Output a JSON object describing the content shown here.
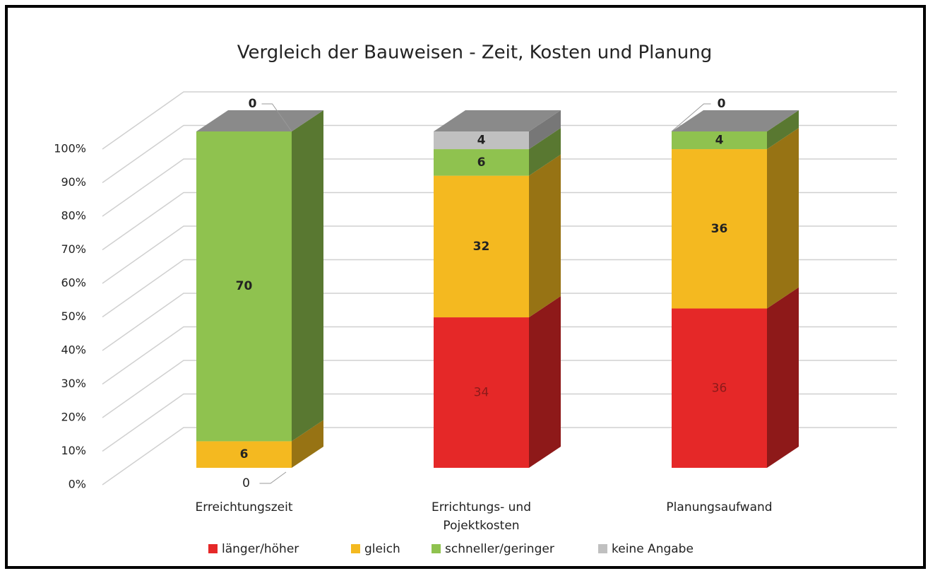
{
  "chart_data": {
    "type": "bar3d",
    "stacking": "percent",
    "title": "Vergleich der Bauweisen - Zeit, Kosten und Planung",
    "categories": [
      "Erreichtungszeit",
      "Errichtungs- und Pojektkosten",
      "Planungsaufwand"
    ],
    "series": [
      {
        "name": "länger/höher",
        "color": "#e52828",
        "values": [
          0,
          34,
          36
        ]
      },
      {
        "name": "gleich",
        "color": "#f4b920",
        "values": [
          6,
          32,
          36
        ]
      },
      {
        "name": "schneller/geringer",
        "color": "#8fc24f",
        "values": [
          70,
          6,
          4
        ]
      },
      {
        "name": "keine Angabe",
        "color": "#c0c0c0",
        "values": [
          0,
          4,
          0
        ]
      }
    ],
    "ylim": [
      0,
      100
    ],
    "yticks": [
      {
        "value": 0,
        "label": "0%"
      },
      {
        "value": 10,
        "label": "10%"
      },
      {
        "value": 20,
        "label": "20%"
      },
      {
        "value": 30,
        "label": "30%"
      },
      {
        "value": 40,
        "label": "40%"
      },
      {
        "value": 50,
        "label": "50%"
      },
      {
        "value": 60,
        "label": "60%"
      },
      {
        "value": 70,
        "label": "70%"
      },
      {
        "value": 80,
        "label": "80%"
      },
      {
        "value": 90,
        "label": "90%"
      },
      {
        "value": 100,
        "label": "100%"
      }
    ],
    "grid": true,
    "legend": "bottom"
  }
}
